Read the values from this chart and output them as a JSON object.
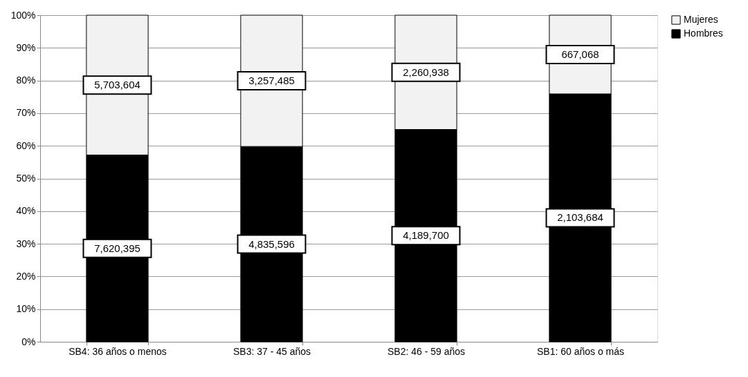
{
  "chart_data": {
    "type": "bar",
    "stacked": true,
    "categories": [
      "SB4: 36 años o menos",
      "SB3: 37 - 45 años",
      "SB2: 46 - 59 años",
      "SB1: 60 años o más"
    ],
    "series": [
      {
        "name": "Hombres",
        "color": "#000000",
        "values": [
          57.2,
          59.8,
          65.0,
          75.9
        ]
      },
      {
        "name": "Mujeres",
        "color": "#f2f2f2",
        "values": [
          42.8,
          40.2,
          35.0,
          24.1
        ]
      }
    ],
    "annotations": [
      "7,620,395",
      "4,835,596",
      "4,189,700",
      "2,103,684",
      "5,703,604",
      "3,257,485",
      "2,260,938",
      "667,068"
    ],
    "ylim": [
      0,
      100
    ],
    "yticks": [
      {
        "value": 0,
        "label": "0%"
      },
      {
        "value": 10,
        "label": "10%"
      },
      {
        "value": 20,
        "label": "20%"
      },
      {
        "value": 30,
        "label": "30%"
      },
      {
        "value": 40,
        "label": "40%"
      },
      {
        "value": 50,
        "label": "50%"
      },
      {
        "value": 60,
        "label": "60%"
      },
      {
        "value": 70,
        "label": "70%"
      },
      {
        "value": 80,
        "label": "80%"
      },
      {
        "value": 90,
        "label": "90%"
      },
      {
        "value": 100,
        "label": "100%"
      }
    ],
    "grid": "y",
    "legend": "right"
  }
}
